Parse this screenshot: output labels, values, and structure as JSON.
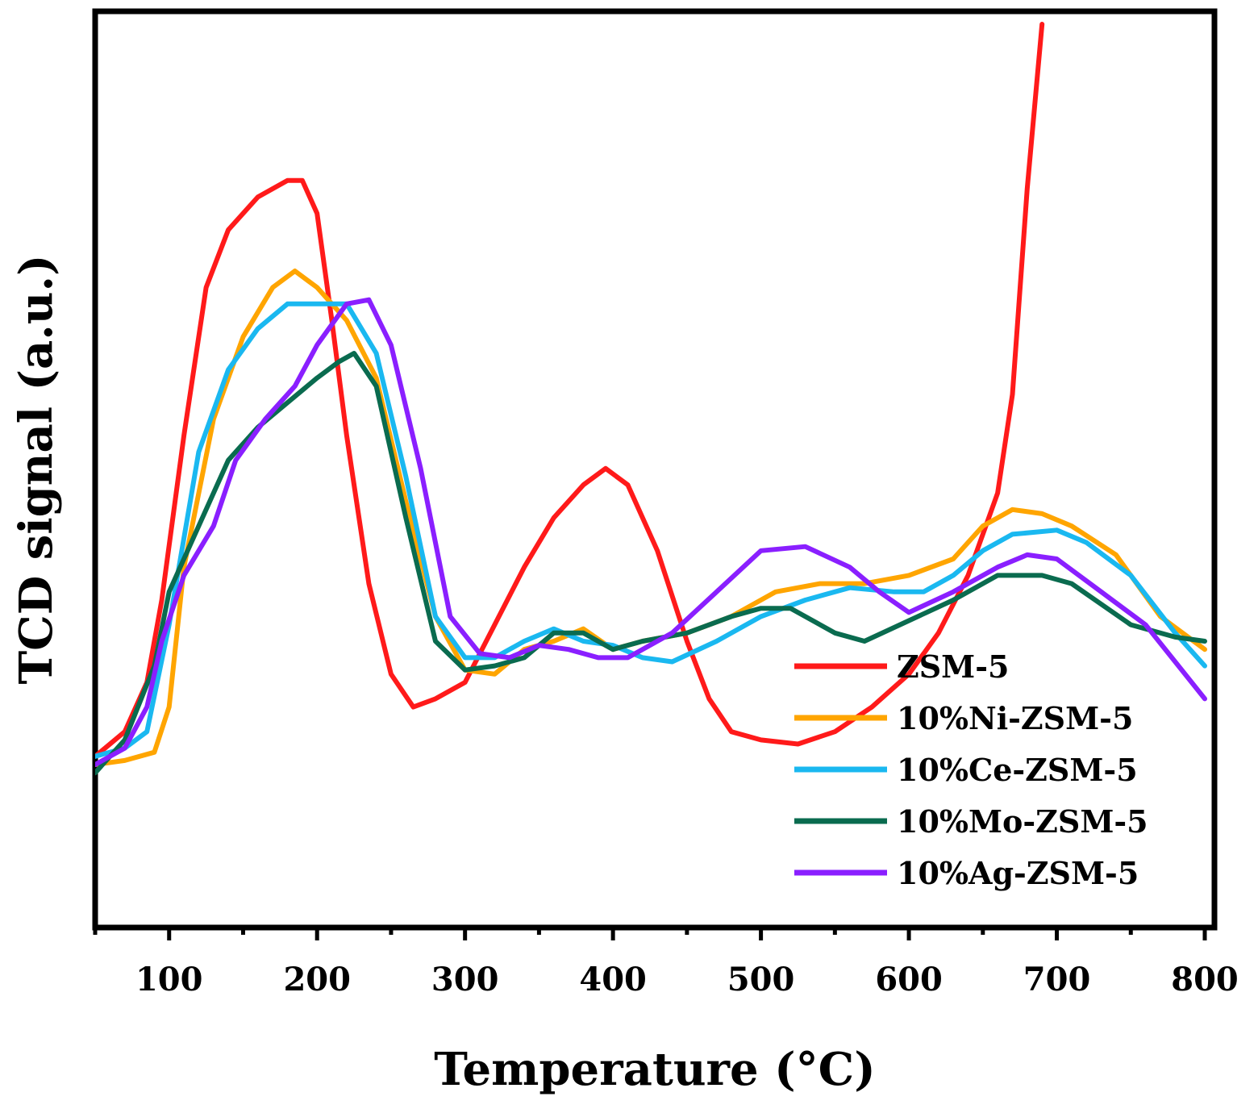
{
  "chart_data": {
    "type": "line",
    "title": "",
    "xlabel": "Temperature (°C)",
    "ylabel": "TCD signal (a.u.)",
    "xlim": [
      50,
      800
    ],
    "ylim": [
      0,
      100
    ],
    "xticks": [
      100,
      200,
      300,
      400,
      500,
      600,
      700,
      800
    ],
    "xtick_labels": [
      "100",
      "200",
      "300",
      "400",
      "500",
      "600",
      "700",
      "800"
    ],
    "yticks_shown": false,
    "grid": false,
    "legend_position": "bottom-right",
    "series": [
      {
        "name": "ZSM-5",
        "color": "#ff1a1a",
        "x": [
          50,
          70,
          85,
          95,
          110,
          125,
          140,
          160,
          180,
          190,
          200,
          210,
          220,
          235,
          250,
          265,
          280,
          300,
          320,
          340,
          360,
          380,
          395,
          410,
          430,
          450,
          465,
          480,
          500,
          525,
          550,
          575,
          600,
          620,
          640,
          660,
          670,
          680,
          690
        ],
        "y": [
          11,
          14,
          20,
          30,
          50,
          68,
          75,
          79,
          81,
          81,
          77,
          64,
          50,
          32,
          21,
          17,
          18,
          20,
          27,
          34,
          40,
          44,
          46,
          44,
          36,
          25,
          18,
          14,
          13,
          12.5,
          14,
          17,
          21,
          26,
          33,
          43,
          55,
          80,
          100
        ]
      },
      {
        "name": "10%Ni-ZSM-5",
        "color": "#ffa500",
        "x": [
          50,
          70,
          90,
          100,
          110,
          130,
          150,
          170,
          185,
          200,
          220,
          240,
          260,
          280,
          300,
          320,
          340,
          360,
          380,
          400,
          420,
          450,
          480,
          510,
          540,
          570,
          600,
          630,
          650,
          670,
          690,
          710,
          740,
          770,
          800
        ],
        "y": [
          10,
          10.5,
          11.5,
          17,
          34,
          52,
          62,
          68,
          70,
          68,
          64,
          57,
          42,
          28,
          21.5,
          21,
          24,
          25,
          26.5,
          24,
          25,
          26,
          28,
          31,
          32,
          32,
          33,
          35,
          39,
          41,
          40.5,
          39,
          35.5,
          28,
          24
        ]
      },
      {
        "name": "10%Ce-ZSM-5",
        "color": "#1ab8f0",
        "x": [
          50,
          70,
          85,
          100,
          120,
          140,
          160,
          180,
          200,
          220,
          240,
          260,
          280,
          300,
          320,
          340,
          360,
          380,
          400,
          420,
          440,
          470,
          500,
          530,
          560,
          590,
          610,
          630,
          650,
          670,
          700,
          720,
          750,
          780,
          800
        ],
        "y": [
          11,
          12,
          14,
          27,
          48,
          58,
          63,
          66,
          66,
          66,
          60,
          45,
          28,
          23,
          23,
          25,
          26.5,
          25,
          24.5,
          23,
          22.5,
          25,
          28,
          30,
          31.5,
          31,
          31,
          33,
          36,
          38,
          38.5,
          37,
          33,
          26,
          22
        ]
      },
      {
        "name": "10%Mo-ZSM-5",
        "color": "#0a6b4f",
        "x": [
          50,
          70,
          90,
          100,
          120,
          140,
          160,
          180,
          200,
          215,
          225,
          240,
          260,
          280,
          300,
          320,
          340,
          360,
          380,
          400,
          420,
          450,
          480,
          500,
          520,
          550,
          570,
          600,
          630,
          660,
          690,
          710,
          750,
          780,
          800
        ],
        "y": [
          9,
          13,
          22,
          31,
          39,
          47,
          51,
          54,
          57,
          59,
          60,
          56,
          40,
          25,
          21.5,
          22,
          23,
          26,
          26,
          24,
          25,
          26,
          28,
          29,
          29,
          26,
          25,
          27.5,
          30,
          33,
          33,
          32,
          27,
          25.5,
          25
        ]
      },
      {
        "name": "10%Ag-ZSM-5",
        "color": "#8a1fff",
        "x": [
          50,
          70,
          85,
          95,
          110,
          130,
          145,
          165,
          185,
          200,
          220,
          235,
          250,
          270,
          290,
          310,
          330,
          350,
          370,
          390,
          410,
          440,
          470,
          500,
          530,
          560,
          580,
          600,
          630,
          660,
          680,
          700,
          730,
          760,
          800
        ],
        "y": [
          10,
          12,
          17,
          25,
          33,
          39,
          47,
          52,
          56,
          61,
          66,
          66.5,
          61,
          46,
          28,
          23.5,
          23,
          24.5,
          24,
          23,
          23,
          26,
          31,
          36,
          36.5,
          34,
          31,
          28.5,
          31,
          34,
          35.5,
          35,
          31,
          27,
          18
        ]
      }
    ]
  }
}
